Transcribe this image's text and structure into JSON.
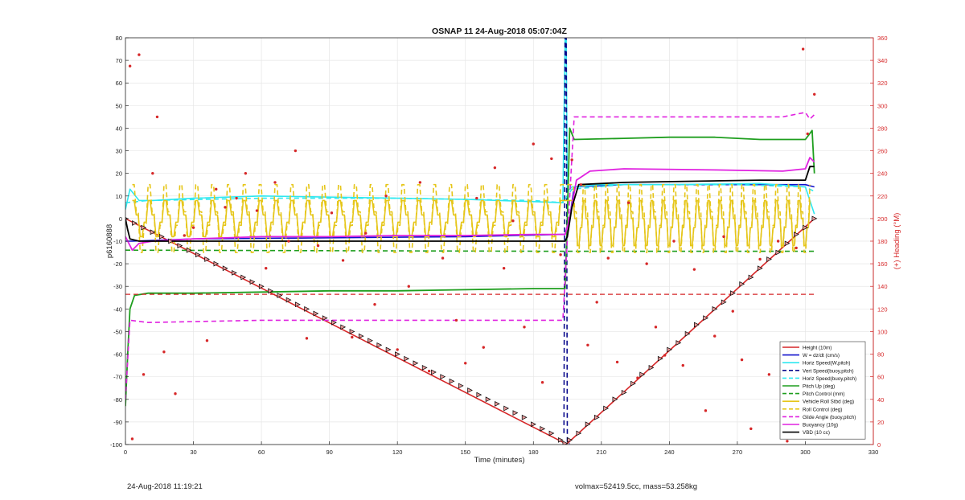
{
  "chart_data": {
    "type": "line",
    "title": "OSNAP 11 24-Aug-2018 05:07:04Z",
    "xlabel": "Time (minutes)",
    "ylabel": "p6160888",
    "y2label": "(+) Heading (°M)",
    "xlim": [
      0,
      330
    ],
    "ylim": [
      -100,
      80
    ],
    "y2lim": [
      0,
      360
    ],
    "xticks": [
      "0",
      "30",
      "60",
      "90",
      "120",
      "150",
      "180",
      "210",
      "240",
      "270",
      "300",
      "330"
    ],
    "yticks": [
      "-100",
      "-90",
      "-80",
      "-70",
      "-60",
      "-50",
      "-40",
      "-30",
      "-20",
      "-10",
      "0",
      "10",
      "20",
      "30",
      "40",
      "50",
      "60",
      "70",
      "80"
    ],
    "y2ticks": [
      "0",
      "20",
      "40",
      "60",
      "80",
      "100",
      "120",
      "140",
      "160",
      "180",
      "200",
      "220",
      "240",
      "260",
      "280",
      "300",
      "320",
      "340",
      "360"
    ],
    "grid": true,
    "legend_position": "bottom-right",
    "colors": {
      "axis": "#262626",
      "right_axis": "#d62728",
      "grid": "#e6e6e6",
      "red": "#d62728",
      "blue": "#1111cc",
      "cyan": "#2ee8f0",
      "navy": "#0a0a8c",
      "green": "#1e9e1e",
      "yellow": "#e6c619",
      "magenta": "#e022e0",
      "black": "#000000"
    },
    "series": [
      {
        "name": "Height (10m)",
        "color": "red",
        "style": "solid",
        "width": 1.6,
        "x": [
          0,
          194,
          195,
          304
        ],
        "y": [
          0,
          -99.5,
          -99.5,
          0
        ]
      },
      {
        "name": "W = dz/dt (cm/s)",
        "color": "blue",
        "style": "solid",
        "width": 1.6,
        "x": [
          0,
          3,
          30,
          90,
          150,
          193,
          194,
          196,
          198,
          220,
          270,
          300,
          304
        ],
        "y": [
          -10,
          -10,
          -9,
          -8.5,
          -8,
          -7,
          -7,
          0,
          14,
          15,
          15,
          15,
          14
        ]
      },
      {
        "name": "Horiz Speed(W,pitch)",
        "color": "cyan",
        "style": "solid",
        "width": 1.6,
        "x": [
          0,
          2,
          6,
          12,
          30,
          60,
          90,
          120,
          150,
          180,
          193,
          194,
          194.5,
          195,
          197,
          210,
          240,
          280,
          300,
          304
        ],
        "y": [
          4,
          13,
          8,
          8,
          9,
          10,
          9.5,
          9,
          8.5,
          7.5,
          7,
          80,
          80,
          12,
          14,
          15,
          15,
          15.5,
          14,
          2
        ]
      },
      {
        "name": "Vert Speed(buoy,pitch)",
        "color": "navy",
        "style": "dashed",
        "width": 1.6,
        "x": [
          193.5,
          194,
          194.5,
          195,
          196
        ],
        "y": [
          -95,
          80,
          80,
          -99.5,
          -99.5
        ]
      },
      {
        "name": "Horiz Speed(buoy,pitch)",
        "color": "cyan",
        "style": "dashed",
        "width": 1.6,
        "x": [
          0,
          10,
          60,
          120,
          180,
          193,
          197,
          220,
          270,
          300,
          304
        ],
        "y": [
          7,
          8,
          9,
          9,
          8,
          7,
          13,
          15,
          15,
          14,
          12
        ]
      },
      {
        "name": "Pitch Up (deg)",
        "color": "green",
        "style": "solid",
        "width": 1.8,
        "x": [
          0,
          1,
          2,
          4,
          10,
          30,
          60,
          90,
          120,
          150,
          180,
          193,
          194,
          195,
          196,
          198,
          220,
          240,
          260,
          280,
          300,
          303,
          304
        ],
        "y": [
          -83,
          -60,
          -40,
          -34,
          -33,
          -33,
          -32.5,
          -32,
          -32,
          -31.5,
          -31,
          -31,
          -31,
          0,
          40,
          35,
          35.5,
          36,
          36,
          35,
          35,
          39,
          20
        ]
      },
      {
        "name": "Pitch Control (mm)",
        "color": "green",
        "style": "dashed",
        "width": 1.6,
        "x": [
          0,
          193,
          194,
          304
        ],
        "y": [
          -14,
          -14.5,
          -14.5,
          -14.5
        ]
      },
      {
        "name": "Vehicle Roll Stbd (deg)",
        "color": "yellow",
        "style": "solid",
        "width": 1.6,
        "pattern": "oscillating",
        "osc": [
          [
            3,
            193,
            -8,
            8,
            7
          ],
          [
            197,
            302,
            -12,
            8,
            5
          ]
        ]
      },
      {
        "name": "Roll Control (deg)",
        "color": "yellow",
        "style": "dashed",
        "width": 1.6,
        "pattern": "oscillating",
        "osc": [
          [
            3,
            193,
            -15,
            15,
            7
          ],
          [
            197,
            302,
            -15,
            15,
            5
          ]
        ]
      },
      {
        "name": "Glide Angle (buoy,pitch)",
        "color": "magenta",
        "style": "dashed",
        "width": 1.6,
        "x": [
          0,
          2,
          10,
          60,
          120,
          180,
          193,
          198,
          220,
          260,
          290,
          300,
          302,
          304
        ],
        "y": [
          -80,
          -45,
          -46,
          -45,
          -45,
          -45,
          -45,
          45,
          45,
          45,
          45,
          47,
          44,
          46
        ]
      },
      {
        "name": "Buoyancy (10g)",
        "color": "magenta",
        "style": "solid",
        "width": 1.8,
        "x": [
          0,
          3,
          6,
          12,
          30,
          60,
          90,
          120,
          150,
          180,
          193,
          194,
          196,
          199,
          205,
          220,
          260,
          290,
          300,
          302,
          304
        ],
        "y": [
          -8,
          -14,
          -11,
          -10,
          -9,
          -8,
          -8,
          -7.5,
          -7.5,
          -7,
          -7,
          -7,
          0,
          17,
          21,
          22,
          21.5,
          21,
          22,
          27,
          25
        ]
      },
      {
        "name": "VBD (10 cc)",
        "color": "black",
        "style": "solid",
        "width": 1.8,
        "x": [
          0,
          1,
          2,
          6,
          90,
          180,
          193,
          194,
          195,
          197,
          200,
          220,
          280,
          300,
          302,
          304
        ],
        "y": [
          0,
          -5,
          -9,
          -10,
          -10,
          -10,
          -10,
          -10,
          -8,
          5,
          15,
          16,
          17,
          17,
          23,
          23
        ]
      },
      {
        "name": "Heading ref",
        "color": "red",
        "style": "dashed",
        "width": 1.3,
        "axis": "right",
        "x": [
          0,
          304
        ],
        "y": [
          133,
          133
        ]
      },
      {
        "name": "Heading",
        "color": "red",
        "style": "markers",
        "axis": "right",
        "x": [
          2,
          3,
          6,
          8,
          12,
          14,
          17,
          22,
          26,
          30,
          36,
          40,
          44,
          49,
          53,
          58,
          62,
          66,
          72,
          75,
          80,
          85,
          91,
          96,
          100,
          106,
          110,
          115,
          120,
          125,
          130,
          134,
          140,
          146,
          150,
          155,
          158,
          163,
          167,
          171,
          176,
          180,
          184,
          188,
          192,
          197,
          201,
          204,
          208,
          213,
          217,
          222,
          226,
          230,
          234,
          238,
          242,
          246,
          251,
          256,
          260,
          264,
          268,
          272,
          276,
          280,
          284,
          288,
          292,
          296,
          299,
          301,
          304
        ],
        "y": [
          335,
          5,
          345,
          62,
          240,
          290,
          82,
          45,
          185,
          192,
          92,
          226,
          210,
          218,
          240,
          207,
          156,
          232,
          180,
          260,
          94,
          176,
          205,
          163,
          95,
          187,
          124,
          220,
          84,
          140,
          232,
          65,
          165,
          110,
          72,
          218,
          86,
          245,
          156,
          198,
          104,
          266,
          55,
          253,
          168,
          252,
          230,
          88,
          126,
          165,
          73,
          214,
          59,
          160,
          104,
          79,
          180,
          70,
          155,
          30,
          96,
          184,
          118,
          75,
          14,
          164,
          62,
          180,
          3,
          174,
          350,
          275,
          310
        ]
      },
      {
        "name": "Height samples",
        "color": "black",
        "style": "triangles",
        "x": [
          0,
          4,
          8,
          12,
          16,
          20,
          24,
          28,
          32,
          36,
          40,
          44,
          48,
          52,
          56,
          60,
          64,
          68,
          72,
          76,
          80,
          84,
          88,
          92,
          96,
          100,
          104,
          108,
          112,
          116,
          120,
          124,
          128,
          132,
          136,
          140,
          144,
          148,
          152,
          156,
          160,
          164,
          168,
          172,
          176,
          180,
          184,
          188,
          192,
          194,
          196,
          200,
          204,
          208,
          212,
          216,
          220,
          224,
          228,
          232,
          236,
          240,
          244,
          248,
          252,
          256,
          260,
          264,
          268,
          272,
          276,
          280,
          284,
          288,
          292,
          296,
          300,
          304
        ],
        "y": [
          0,
          -2,
          -4,
          -6,
          -8,
          -10,
          -12,
          -14,
          -16,
          -18,
          -20,
          -22,
          -24,
          -26,
          -28,
          -30,
          -32,
          -34,
          -36,
          -38,
          -40,
          -42,
          -44,
          -46,
          -48,
          -50,
          -52,
          -54,
          -56,
          -58,
          -60,
          -62,
          -64,
          -66,
          -68,
          -70,
          -72,
          -74,
          -76,
          -78,
          -80,
          -82,
          -84,
          -86,
          -88,
          -91,
          -93,
          -95,
          -98,
          -99.5,
          -98,
          -95,
          -91,
          -88,
          -84,
          -80,
          -77,
          -73,
          -69,
          -66,
          -62,
          -58,
          -55,
          -51,
          -47,
          -44,
          -40,
          -37,
          -33,
          -29,
          -26,
          -22,
          -18,
          -15,
          -11,
          -7,
          -4,
          0
        ]
      }
    ]
  },
  "footer": {
    "timestamp": "24-Aug-2018 11:19:21",
    "stats": "volmax=52419.5cc, mass=53.258kg"
  }
}
